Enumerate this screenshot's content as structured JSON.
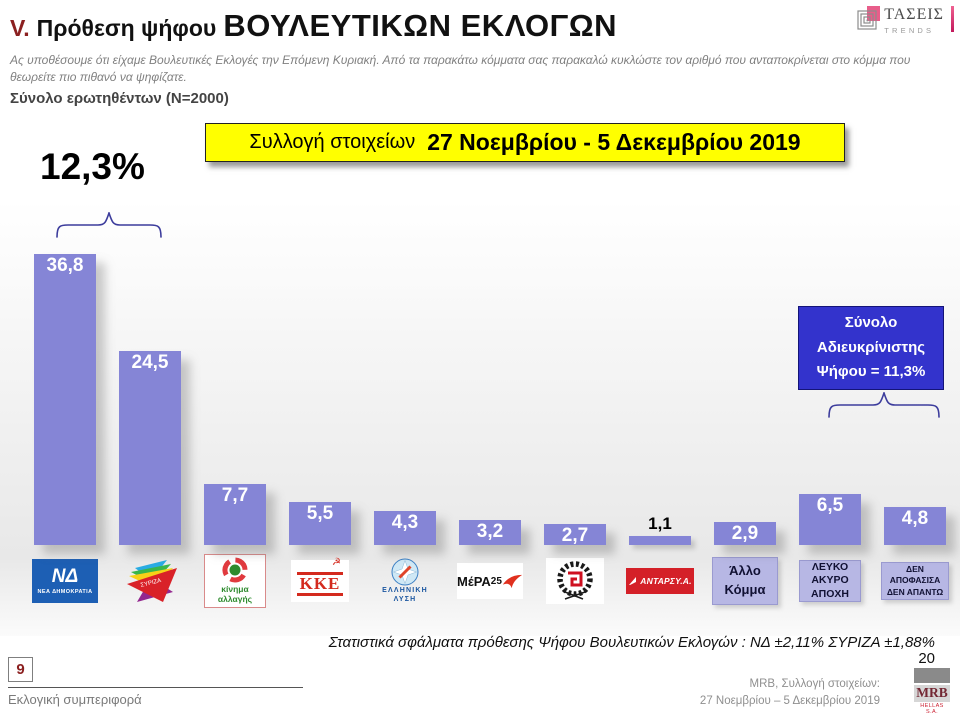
{
  "header": {
    "section_number": "V.",
    "title_prefix": "Πρόθεση ψήφου",
    "title_main": "ΒΟΥΛΕΥΤΙΚΩΝ ΕΚΛΟΓΩΝ",
    "subtitle": "Ας υποθέσουμε ότι είχαμε Βουλευτικές Εκλογές την Επόμενη Κυριακή. Από τα παρακάτω κόμματα σας παρακαλώ κυκλώστε τον αριθμό που ανταποκρίνεται στο κόμμα που θεωρείτε πιο πιθανό να ψηφίζατε.",
    "sample_note": "Σύνολο ερωτηθέντων (N=2000)"
  },
  "taseis_logo": {
    "name": "ΤΑΣΕΙΣ",
    "sub": "TRENDS",
    "icon": "nested-squares-spiral-icon"
  },
  "collection_box": {
    "prefix": "Συλλογή στοιχείων",
    "dates": "27 Νοεμβρίου - 5 Δεκεμβρίου 2019"
  },
  "undecided_total_left": "12,3%",
  "undecided_box": {
    "line1": "Σύνολο",
    "line2": "Αδιευκρίνιστης",
    "line3": "Ψήφου = 11,3%"
  },
  "chart_data": {
    "type": "bar",
    "title": "Πρόθεση ψήφου Βουλευτικών Εκλογών",
    "categories": [
      "ΝΕΑ ΔΗΜΟΚΡΑΤΙΑ",
      "ΣΥΡΙΖΑ",
      "ΚΙΝΗΜΑ ΑΛΛΑΓΗΣ",
      "ΚΚΕ",
      "ΕΛΛΗΝΙΚΗ ΛΥΣΗ",
      "ΜέΡΑ25",
      "ΧΡΥΣΗ ΑΥΓΗ",
      "ΑΝΤΑΡΣΥΑ",
      "ΑΛΛΟ ΚΟΜΜΑ",
      "ΛΕΥΚΟ ΑΚΥΡΟ ΑΠΟΧΗ",
      "ΔΕΝ ΑΠΟΦΑΣΙΣΑ ΔΕΝ ΑΠΑΝΤΩ"
    ],
    "values": [
      36.8,
      24.5,
      7.7,
      5.5,
      4.3,
      3.2,
      2.7,
      1.1,
      2.9,
      6.5,
      4.8
    ],
    "value_labels": [
      "36,8",
      "24,5",
      "7,7",
      "5,5",
      "4,3",
      "3,2",
      "2,7",
      "1,1",
      "2,9",
      "6,5",
      "4,8"
    ],
    "bar_color": "#8585d6",
    "ylim": [
      0,
      37
    ],
    "grid": false,
    "legend": "none",
    "annotations": [
      "12,3% brace over first two bars",
      "Σύνολο Αδιευκρίνιστης Ψήφου = 11,3% brace over last two bars"
    ]
  },
  "logos": {
    "nd": {
      "abbr": "ΝΔ",
      "name": "ΝΕΑ ΔΗΜΟΚΡΑΤΙΑ"
    },
    "syriza": {
      "name": "ΣΥΡΙΖΑ"
    },
    "kinal": {
      "line1": "κίνημα",
      "line2": "αλλαγής"
    },
    "kke": {
      "name": "ΚΚΕ"
    },
    "el": {
      "line1": "ΕΛΛΗΝΙΚΗ",
      "line2": "ΛΥΣΗ"
    },
    "mera25": {
      "name": "ΜέΡΑ",
      "num": "25"
    },
    "antarsya": {
      "name": "ΑΝΤΑΡΣΥ.Α."
    },
    "other": {
      "line1": "Άλλο",
      "line2": "Κόμμα"
    },
    "blank": {
      "line1": "ΛΕΥΚΟ",
      "line2": "ΑΚΥΡΟ",
      "line3": "ΑΠΟΧΗ"
    },
    "undecided": {
      "line1": "ΔΕΝ",
      "line2": "ΑΠΟΦΑΣΙΣΑ",
      "line3": "ΔΕΝ ΑΠΑΝΤΩ"
    }
  },
  "stat_note": "Στατιστικά σφάλματα πρόθεσης Ψήφου Βουλευτικών Εκλογών : ΝΔ ±2,11% ΣΥΡΙΖΑ ±1,88%",
  "footer": {
    "page_box": "9",
    "section_label": "Εκλογική συμπεριφορά",
    "page_number": "20",
    "source_line1": "MRB, Συλλογή στοιχείων:",
    "source_line2": "27 Νοεμβρίου – 5 Δεκεμβρίου 2019",
    "mrb_logo": {
      "name": "MRB",
      "sub": "HELLAS S.A."
    }
  },
  "colors": {
    "bar": "#8585d6",
    "category_box": "#b7b7e4",
    "undecided_box_bg": "#3333cc",
    "collection_box_bg": "#ffff00",
    "brace": "#3c3c9c",
    "section_red": "#8b2020"
  }
}
